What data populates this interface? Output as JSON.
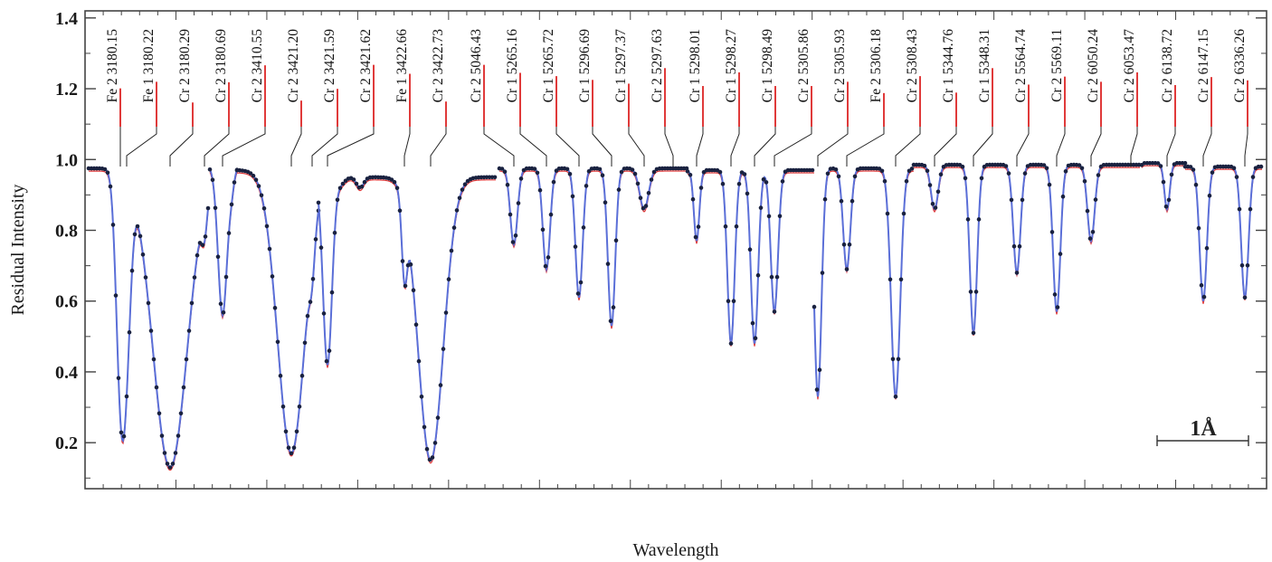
{
  "chart_data": {
    "type": "line",
    "title": "",
    "xlabel": "Wavelength",
    "ylabel": "Residual Intensity",
    "ylim": [
      0.07,
      1.42
    ],
    "yticks": [
      "0.2",
      "0.4",
      "0.6",
      "0.8",
      "1.0",
      "1.2",
      "1.4"
    ],
    "scale_bar_label": "1Å",
    "grid": false,
    "colors": {
      "observed": "#1a2240",
      "model_blue": "#5a6fd8",
      "model_red": "#e03a3a",
      "leader": "#222222"
    },
    "series": [
      {
        "name": "",
        "style": "observed points (dark)"
      },
      {
        "name": "",
        "style": "model profile (blue)"
      },
      {
        "name": "",
        "style": "model profile (red)"
      }
    ],
    "lines": [
      {
        "label": "Fe 2 3180.15",
        "depth": 0.43
      },
      {
        "label": "Fe 1 3180.22",
        "depth": 0.57
      },
      {
        "label": "Cr 2 3180.29",
        "depth": 0.13
      },
      {
        "label": "Cr 2 3180.69",
        "depth": 0.56
      },
      {
        "label": "Cr 2 3410.55",
        "depth": 0.92
      },
      {
        "label": "Cr 2 3421.20",
        "depth": 0.17
      },
      {
        "label": "Cr 2 3421.59",
        "depth": 0.42
      },
      {
        "label": "Cr 2 3421.62",
        "depth": 0.93
      },
      {
        "label": "Fe 1 3422.66",
        "depth": 0.74
      },
      {
        "label": "Cr 2 3422.73",
        "depth": 0.15
      },
      {
        "label": "Cr 2 5046.43",
        "depth": 0.93
      },
      {
        "label": "Cr 1 5265.16",
        "depth": 0.76
      },
      {
        "label": "Cr 1 5265.72",
        "depth": 0.69
      },
      {
        "label": "Cr 1 5296.69",
        "depth": 0.61
      },
      {
        "label": "Cr 1 5297.37",
        "depth": 0.53
      },
      {
        "label": "Cr 2 5297.63",
        "depth": 0.86
      },
      {
        "label": "Cr 1 5298.01",
        "depth": 0.48
      },
      {
        "label": "Cr 1 5298.27",
        "depth": 0.77
      },
      {
        "label": "Cr 1 5298.49",
        "depth": 0.48
      },
      {
        "label": "Cr 2 5305.86",
        "depth": 0.48
      },
      {
        "label": "Cr 2 5305.93",
        "depth": 0.57
      },
      {
        "label": "Fe 2 5306.18",
        "depth": 0.33
      },
      {
        "label": "Cr 2 5308.43",
        "depth": 0.69
      },
      {
        "label": "Cr 1 5344.76",
        "depth": 0.34
      },
      {
        "label": "Cr 1 5348.31",
        "depth": 0.86
      },
      {
        "label": "Cr 2 5564.74",
        "depth": 0.51
      },
      {
        "label": "Cr 2 5569.11",
        "depth": 0.68
      },
      {
        "label": "Cr 2 6050.24",
        "depth": 0.57
      },
      {
        "label": "Cr 2 6053.47",
        "depth": 0.77
      },
      {
        "label": "Cr 2 6138.72",
        "depth": 0.5
      },
      {
        "label": "Cr 2 6147.15",
        "depth": 0.67
      },
      {
        "label": "Cr 2 6336.26",
        "depth": 0.6
      }
    ],
    "segments": [
      {
        "start": 0.975,
        "lines": [
          [
            0.43,
            5
          ],
          [
            0.57,
            5
          ],
          [
            0.13,
            19
          ],
          [
            0.88,
            3
          ]
        ]
      },
      {
        "start": 0.98,
        "lines": [
          [
            0.56,
            5
          ],
          [
            0.93,
            3
          ]
        ]
      },
      {
        "start": 0.97,
        "lines": [
          [
            0.17,
            15
          ],
          [
            0.88,
            3
          ]
        ]
      },
      {
        "start": 0.95,
        "lines": [
          [
            0.42,
            5
          ],
          [
            0.93,
            5
          ],
          [
            0.92,
            4
          ],
          [
            0.74,
            3
          ],
          [
            0.15,
            14
          ]
        ]
      },
      {
        "start": 0.975,
        "lines": [
          [
            0.76,
            4
          ],
          [
            0.69,
            4
          ],
          [
            0.61,
            4
          ],
          [
            0.53,
            4
          ],
          [
            0.86,
            5
          ]
        ]
      },
      {
        "start": 0.97,
        "lines": [
          [
            0.48,
            5
          ],
          [
            0.77,
            3
          ],
          [
            0.48,
            4
          ],
          [
            0.48,
            4
          ],
          [
            0.57,
            4
          ]
        ]
      },
      {
        "start": 0.975,
        "lines": [
          [
            0.33,
            4
          ],
          [
            0.69,
            4
          ],
          [
            0.33,
            5
          ]
        ]
      },
      {
        "start": 0.985,
        "lines": [
          [
            0.86,
            4
          ],
          [
            0.51,
            4
          ],
          [
            0.68,
            4
          ],
          [
            0.57,
            4
          ],
          [
            0.77,
            4
          ]
        ]
      },
      {
        "start": 0.99,
        "lines": [
          [
            0.5,
            4
          ],
          [
            0.86,
            3
          ]
        ]
      },
      {
        "start": 0.98,
        "lines": [
          [
            0.67,
            4
          ],
          [
            0.6,
            4
          ],
          [
            0.61,
            4
          ]
        ]
      }
    ]
  }
}
